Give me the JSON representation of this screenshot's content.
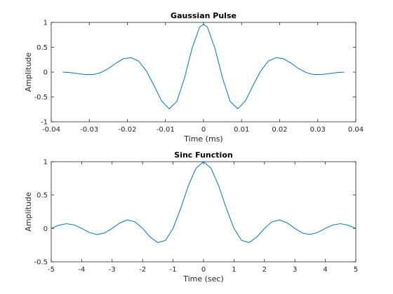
{
  "colors": {
    "line": "#0072BD",
    "axes": "#262626",
    "background": "#ffffff"
  },
  "chart_data": [
    {
      "type": "line",
      "title": "Gaussian Pulse",
      "xlabel": "Time (ms)",
      "ylabel": "Amplitude",
      "xlim": [
        -0.04,
        0.04
      ],
      "ylim": [
        -1,
        1
      ],
      "grid": false,
      "legend": "none",
      "x_ticks": [
        -0.04,
        -0.03,
        -0.02,
        -0.01,
        0,
        0.01,
        0.02,
        0.03,
        0.04
      ],
      "x_tick_labels": [
        "-0.04",
        "-0.03",
        "-0.02",
        "-0.01",
        "0",
        "0.01",
        "0.02",
        "0.03",
        "0.04"
      ],
      "y_ticks": [
        -1,
        -0.5,
        0,
        0.5,
        1
      ],
      "y_tick_labels": [
        "-1",
        "-0.5",
        "0",
        "0.5",
        "1"
      ],
      "series": [
        {
          "x": [
            -0.037,
            -0.035,
            -0.033,
            -0.031,
            -0.029,
            -0.027,
            -0.025,
            -0.023,
            -0.021,
            -0.019,
            -0.017,
            -0.015,
            -0.013,
            -0.011,
            -0.009,
            -0.007,
            -0.005,
            -0.003,
            -0.001,
            0,
            0.001,
            0.003,
            0.005,
            0.007,
            0.009,
            0.011,
            0.013,
            0.015,
            0.017,
            0.019,
            0.021,
            0.023,
            0.025,
            0.027,
            0.029,
            0.031,
            0.033,
            0.035,
            0.037
          ],
          "y": [
            0.0,
            -0.01,
            -0.03,
            -0.05,
            -0.05,
            -0.01,
            0.07,
            0.18,
            0.27,
            0.29,
            0.22,
            0.02,
            -0.27,
            -0.58,
            -0.74,
            -0.59,
            -0.12,
            0.48,
            0.91,
            0.96,
            0.91,
            0.48,
            -0.12,
            -0.59,
            -0.74,
            -0.58,
            -0.27,
            0.02,
            0.22,
            0.29,
            0.27,
            0.18,
            0.07,
            -0.01,
            -0.05,
            -0.05,
            -0.03,
            -0.01,
            0.0
          ]
        }
      ]
    },
    {
      "type": "line",
      "title": "Sinc Function",
      "xlabel": "Time (sec)",
      "ylabel": "Amplitude",
      "xlim": [
        -5,
        5
      ],
      "ylim": [
        -0.5,
        1
      ],
      "grid": false,
      "legend": "none",
      "x_ticks": [
        -5,
        -4,
        -3,
        -2,
        -1,
        0,
        1,
        2,
        3,
        4,
        5
      ],
      "x_tick_labels": [
        "-5",
        "-4",
        "-3",
        "-2",
        "-1",
        "0",
        "1",
        "2",
        "3",
        "4",
        "5"
      ],
      "y_ticks": [
        -0.5,
        0,
        0.5,
        1
      ],
      "y_tick_labels": [
        "-0.5",
        "0",
        "0.5",
        "1"
      ],
      "series": [
        {
          "x": [
            -5,
            -4.75,
            -4.5,
            -4.25,
            -4,
            -3.75,
            -3.5,
            -3.25,
            -3,
            -2.75,
            -2.5,
            -2.25,
            -2,
            -1.75,
            -1.5,
            -1.25,
            -1,
            -0.75,
            -0.5,
            -0.25,
            0,
            0.25,
            0.5,
            0.75,
            1,
            1.25,
            1.5,
            1.75,
            2,
            2.25,
            2.5,
            2.75,
            3,
            3.25,
            3.5,
            3.75,
            4,
            4.25,
            4.5,
            4.75,
            5
          ],
          "y": [
            0.0,
            0.048,
            0.071,
            0.053,
            0.0,
            -0.06,
            -0.091,
            -0.069,
            0.0,
            0.082,
            0.127,
            0.1,
            0.0,
            -0.129,
            -0.212,
            -0.18,
            0.0,
            0.3,
            0.637,
            0.9,
            1.0,
            0.9,
            0.637,
            0.3,
            0.0,
            -0.18,
            -0.212,
            -0.129,
            0.0,
            0.1,
            0.127,
            0.082,
            0.0,
            -0.069,
            -0.091,
            -0.06,
            0.0,
            0.053,
            0.071,
            0.048,
            0.0
          ]
        }
      ]
    }
  ]
}
